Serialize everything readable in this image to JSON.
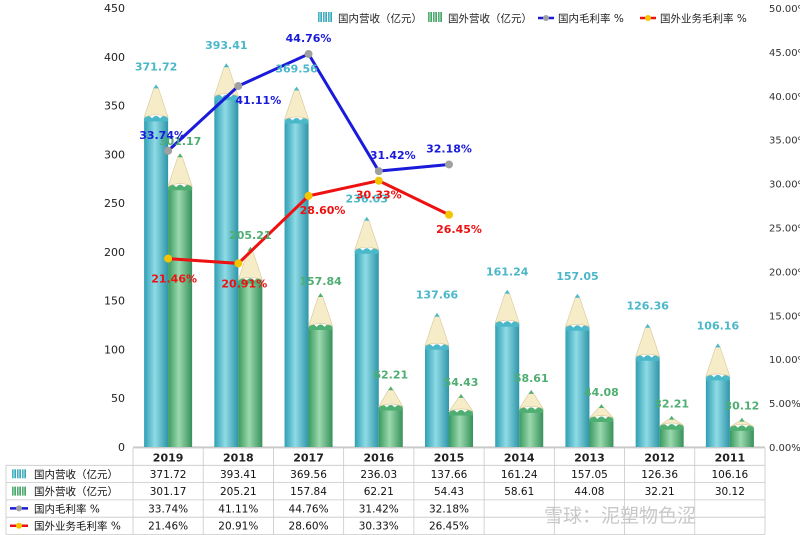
{
  "chart_data": {
    "type": "bar",
    "categories": [
      "2019",
      "2018",
      "2017",
      "2016",
      "2015",
      "2014",
      "2013",
      "2012",
      "2011"
    ],
    "series": [
      {
        "name": "国内营收（亿元）",
        "kind": "bar",
        "axis": "left",
        "color": "#4bb8c9",
        "values": [
          371.72,
          393.41,
          369.56,
          236.03,
          137.66,
          161.24,
          157.05,
          126.36,
          106.16
        ],
        "labels": [
          "371.72",
          "393.41",
          "369.56",
          "236.03",
          "137.66",
          "161.24",
          "157.05",
          "126.36",
          "106.16"
        ],
        "table": [
          "371.72",
          "393.41",
          "369.56",
          "236.03",
          "137.66",
          "161.24",
          "157.05",
          "126.36",
          "106.16"
        ]
      },
      {
        "name": "国外营收（亿元）",
        "kind": "bar",
        "axis": "left",
        "color": "#4fae72",
        "values": [
          301.17,
          205.21,
          157.84,
          62.21,
          54.43,
          58.61,
          44.08,
          32.21,
          30.12
        ],
        "labels": [
          "301.17",
          "205.21",
          "157.84",
          "62.21",
          "54.43",
          "58.61",
          "44.08",
          "32.21",
          "30.12"
        ],
        "table": [
          "301.17",
          "205.21",
          "157.84",
          "62.21",
          "54.43",
          "58.61",
          "44.08",
          "32.21",
          "30.12"
        ]
      },
      {
        "name": "国内毛利率 %",
        "kind": "line",
        "axis": "right",
        "color": "#1a1adb",
        "marker": "#a0a0a0",
        "values": [
          33.74,
          41.11,
          44.76,
          31.42,
          32.18,
          null,
          null,
          null,
          null
        ],
        "labels": [
          "33.74%",
          "41.11%",
          "44.76%",
          "31.42%",
          "32.18%",
          "",
          "",
          "",
          ""
        ],
        "table": [
          "33.74%",
          "41.11%",
          "44.76%",
          "31.42%",
          "32.18%",
          "",
          "",
          "",
          ""
        ]
      },
      {
        "name": "国外业务毛利率 %",
        "kind": "line",
        "axis": "right",
        "color": "#ee1111",
        "marker": "#f5c400",
        "values": [
          21.46,
          20.91,
          28.6,
          30.33,
          26.45,
          null,
          null,
          null,
          null
        ],
        "labels": [
          "21.46%",
          "20.91%",
          "28.60%",
          "30.33%",
          "26.45%",
          "",
          "",
          "",
          ""
        ],
        "table": [
          "21.46%",
          "20.91%",
          "28.60%",
          "30.33%",
          "26.45%",
          "",
          "",
          "",
          ""
        ]
      }
    ],
    "y_left": {
      "ylim": [
        0,
        450
      ],
      "ticks": [
        "0",
        "50",
        "100",
        "150",
        "200",
        "250",
        "300",
        "350",
        "400",
        "450"
      ]
    },
    "y_right": {
      "ylim": [
        0,
        50
      ],
      "ticks": [
        "0.00%",
        "5.00%",
        "10.00%",
        "15.00%",
        "20.00%",
        "25.00%",
        "30.00%",
        "35.00%",
        "40.00%",
        "45.00%",
        "50.00%"
      ]
    },
    "legend_position": "top",
    "data_table": true,
    "grid": false
  },
  "watermark": "雪球：泥塑物色涩"
}
